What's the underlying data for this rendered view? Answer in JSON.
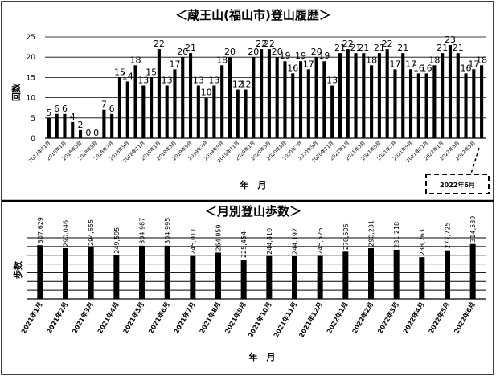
{
  "chart_data": [
    {
      "type": "bar",
      "title": "＜蔵王山(福山市)登山履歴＞",
      "ylabel": "回数",
      "xlabel": "年　月",
      "ylim": [
        0,
        25
      ],
      "yticks": [
        0,
        5,
        10,
        15,
        20,
        25
      ],
      "tick_labels": [
        "2017年11月",
        "2018年1月",
        "2018年3月",
        "2018年5月",
        "2018年7月",
        "2018年9月",
        "2018年11月",
        "2019年1月",
        "2019年3月",
        "2019年5月",
        "2019年7月",
        "2019年9月",
        "2019年11月",
        "2020年1月",
        "2020年3月",
        "2020年5月",
        "2020年7月",
        "2020年9月",
        "2020年11月",
        "2021年1月",
        "2021年3月",
        "2021年5月",
        "2021年7月",
        "2021年9月",
        "2021年11月",
        "2022年1月",
        "2022年3月",
        "2022年5月"
      ],
      "values": [
        5,
        6,
        6,
        4,
        2,
        0,
        0,
        7,
        6,
        15,
        14,
        18,
        13,
        15,
        22,
        13,
        17,
        20,
        21,
        13,
        10,
        13,
        18,
        20,
        12,
        12,
        20,
        22,
        22,
        20,
        19,
        16,
        19,
        17,
        20,
        19,
        13,
        21,
        22,
        21,
        21,
        18,
        21,
        22,
        17,
        21,
        17,
        16,
        16,
        18,
        21,
        23,
        21,
        16,
        17,
        18
      ],
      "callout": "2022年6月",
      "grid": true
    },
    {
      "type": "bar",
      "title": "＜月別登山歩数＞",
      "ylabel": "歩数",
      "xlabel": "年　月",
      "categories": [
        "2021年1月",
        "2021年2月",
        "2021年3月",
        "2021年4月",
        "2021年5月",
        "2021年6月",
        "2021年7月",
        "2021年8月",
        "2021年9月",
        "2021年10月",
        "2021年11月",
        "2021年12月",
        "2022年1月",
        "2022年2月",
        "2022年3月",
        "2022年4月",
        "2022年5月",
        "2022年6月"
      ],
      "values": [
        307629,
        290046,
        294655,
        249595,
        304987,
        304995,
        245011,
        264959,
        225454,
        244810,
        244192,
        245526,
        270505,
        290231,
        281218,
        238763,
        277725,
        314539
      ],
      "value_labels": [
        "307,629",
        "290,046",
        "294,655",
        "249,595",
        "304,987",
        "304,995",
        "245,011",
        "264,959",
        "225,454",
        "244,810",
        "244,192",
        "245,526",
        "270,505",
        "290,231",
        "281,218",
        "238,763",
        "277,725",
        "314,539"
      ],
      "ylim": [
        0,
        350000
      ],
      "grid": true
    }
  ]
}
